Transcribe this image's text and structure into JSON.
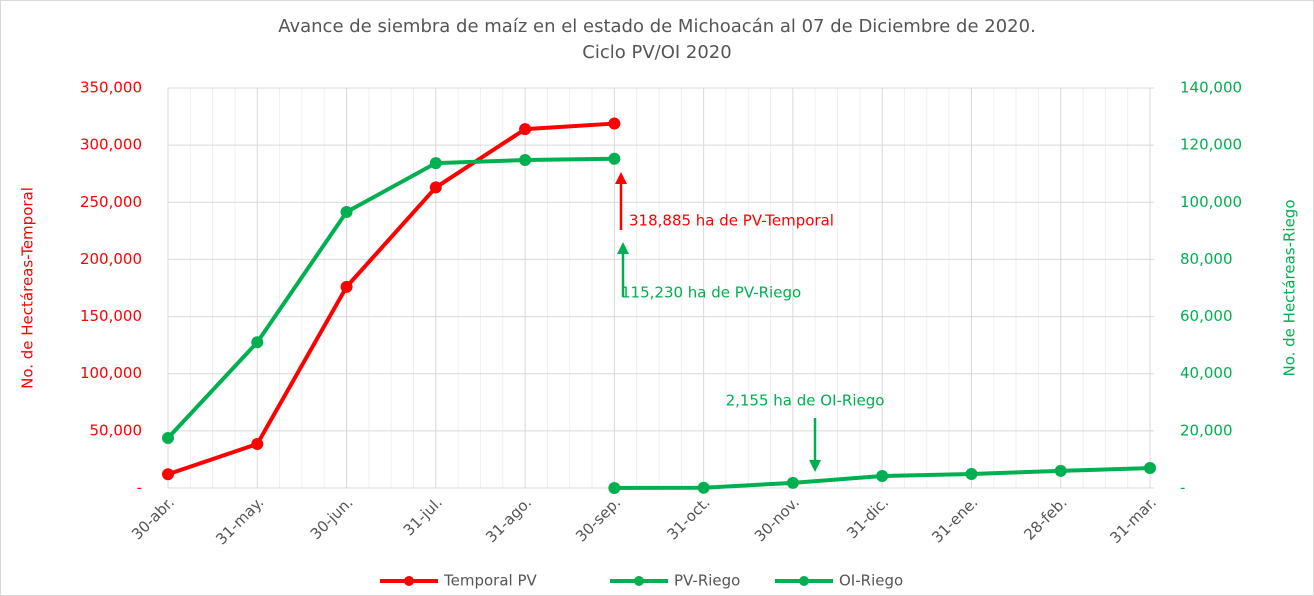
{
  "chart_data": {
    "type": "line",
    "title": [
      "Avance de siembra de maíz en el estado de Michoacán al 07 de Diciembre de 2020.",
      "Ciclo PV/OI 2020"
    ],
    "ylabel": "No. de Hectáreas-Temporal",
    "y2label": "No. de Hectáreas-Riego",
    "categories": [
      "30-abr.",
      "31-may.",
      "30-jun.",
      "31-jul.",
      "31-ago.",
      "30-sep.",
      "31-oct.",
      "30-nov.",
      "31-dic.",
      "31-ene.",
      "28-feb.",
      "31-mar."
    ],
    "series": [
      {
        "name": "Temporal PV",
        "color": "#ff0000",
        "axis": "y",
        "values": [
          12000,
          38500,
          176000,
          263000,
          314000,
          318885,
          null,
          null,
          null,
          null,
          null,
          null
        ]
      },
      {
        "name": "PV-Riego",
        "color": "#00b050",
        "axis": "y2",
        "values": [
          17500,
          51000,
          96600,
          113700,
          114800,
          115230,
          null,
          null,
          null,
          null,
          null,
          null
        ]
      },
      {
        "name": "OI-Riego",
        "color": "#00b050",
        "axis": "y2",
        "values": [
          null,
          null,
          null,
          null,
          null,
          0,
          100,
          1800,
          4200,
          4900,
          6000,
          7000
        ]
      }
    ],
    "ylim": [
      0,
      350000
    ],
    "yticks": [
      {
        "value": 0,
        "label": "-"
      },
      {
        "value": 50000,
        "label": "50,000"
      },
      {
        "value": 100000,
        "label": "100,000"
      },
      {
        "value": 150000,
        "label": "150,000"
      },
      {
        "value": 200000,
        "label": "200,000"
      },
      {
        "value": 250000,
        "label": "250,000"
      },
      {
        "value": 300000,
        "label": "300,000"
      },
      {
        "value": 350000,
        "label": "350,000"
      }
    ],
    "y2lim": [
      0,
      140000
    ],
    "y2ticks": [
      {
        "value": 0,
        "label": "-"
      },
      {
        "value": 20000,
        "label": "20,000"
      },
      {
        "value": 40000,
        "label": "40,000"
      },
      {
        "value": 60000,
        "label": "60,000"
      },
      {
        "value": 80000,
        "label": "80,000"
      },
      {
        "value": 100000,
        "label": "100,000"
      },
      {
        "value": 120000,
        "label": "120,000"
      },
      {
        "value": 140000,
        "label": "140,000"
      }
    ],
    "annotations": [
      "318,885 ha de PV-Temporal",
      "115,230 ha de PV-Riego",
      "2,155 ha de OI-Riego"
    ],
    "grid": true,
    "legend": "bottom"
  }
}
